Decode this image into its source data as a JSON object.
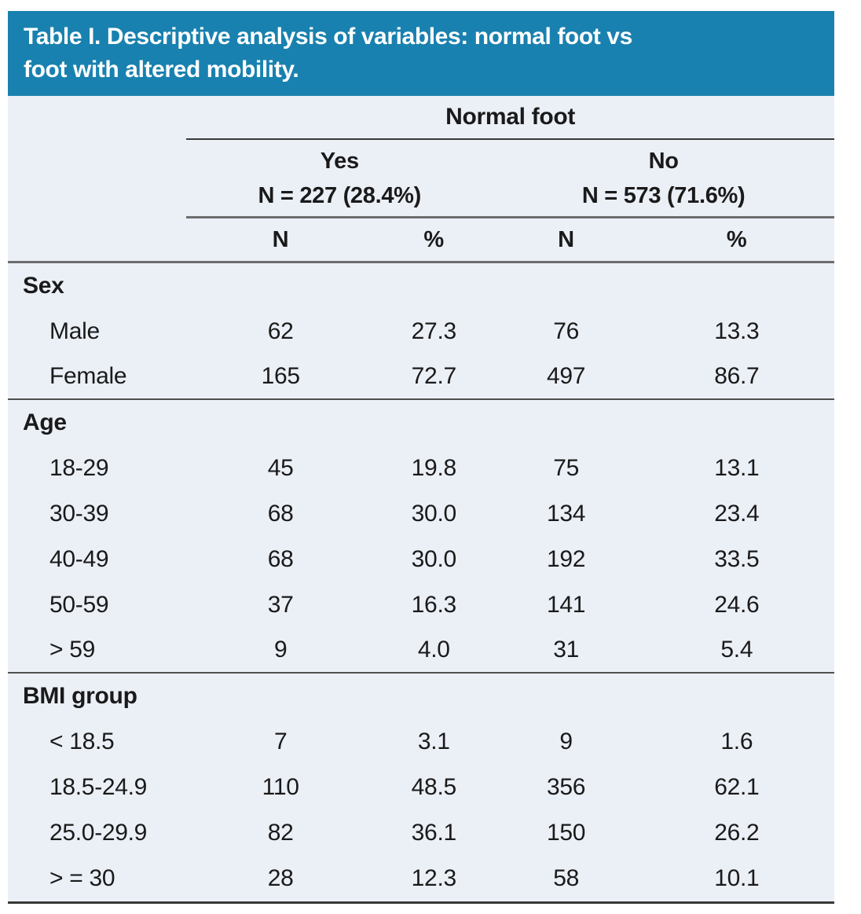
{
  "header": {
    "title_lines": [
      "Table I. Descriptive analysis of variables: normal foot vs",
      "foot with altered mobility."
    ]
  },
  "colors": {
    "banner_background": "#1981af",
    "table_background": "#ebeff6",
    "text": "#1a1a1a",
    "rule_gray": "#6d6d6d",
    "rule_dark": "#383838"
  },
  "table": {
    "group_header": "Normal foot",
    "subgroups": [
      {
        "label": "Yes",
        "count": "N = 227 (28.4%)"
      },
      {
        "label": "No",
        "count": "N = 573 (71.6%)"
      }
    ],
    "col_headers": [
      "N",
      "%",
      "N",
      "%"
    ],
    "sections": [
      {
        "header": "Sex",
        "rows": [
          {
            "label": "Male",
            "values": [
              "62",
              "27.3",
              "76",
              "13.3"
            ]
          },
          {
            "label": "Female",
            "values": [
              "165",
              "72.7",
              "497",
              "86.7"
            ]
          }
        ]
      },
      {
        "header": "Age",
        "rows": [
          {
            "label": "18-29",
            "values": [
              "45",
              "19.8",
              "75",
              "13.1"
            ]
          },
          {
            "label": "30-39",
            "values": [
              "68",
              "30.0",
              "134",
              "23.4"
            ]
          },
          {
            "label": "40-49",
            "values": [
              "68",
              "30.0",
              "192",
              "33.5"
            ]
          },
          {
            "label": "50-59",
            "values": [
              "37",
              "16.3",
              "141",
              "24.6"
            ]
          },
          {
            "label": "> 59",
            "values": [
              "9",
              "4.0",
              "31",
              "5.4"
            ]
          }
        ]
      },
      {
        "header": "BMI group",
        "rows": [
          {
            "label": "< 18.5",
            "values": [
              "7",
              "3.1",
              "9",
              "1.6"
            ]
          },
          {
            "label": "18.5-24.9",
            "values": [
              "110",
              "48.5",
              "356",
              "62.1"
            ]
          },
          {
            "label": "25.0-29.9",
            "values": [
              "82",
              "36.1",
              "150",
              "26.2"
            ]
          },
          {
            "label": "> = 30",
            "values": [
              "28",
              "12.3",
              "58",
              "10.1"
            ]
          }
        ]
      }
    ]
  }
}
